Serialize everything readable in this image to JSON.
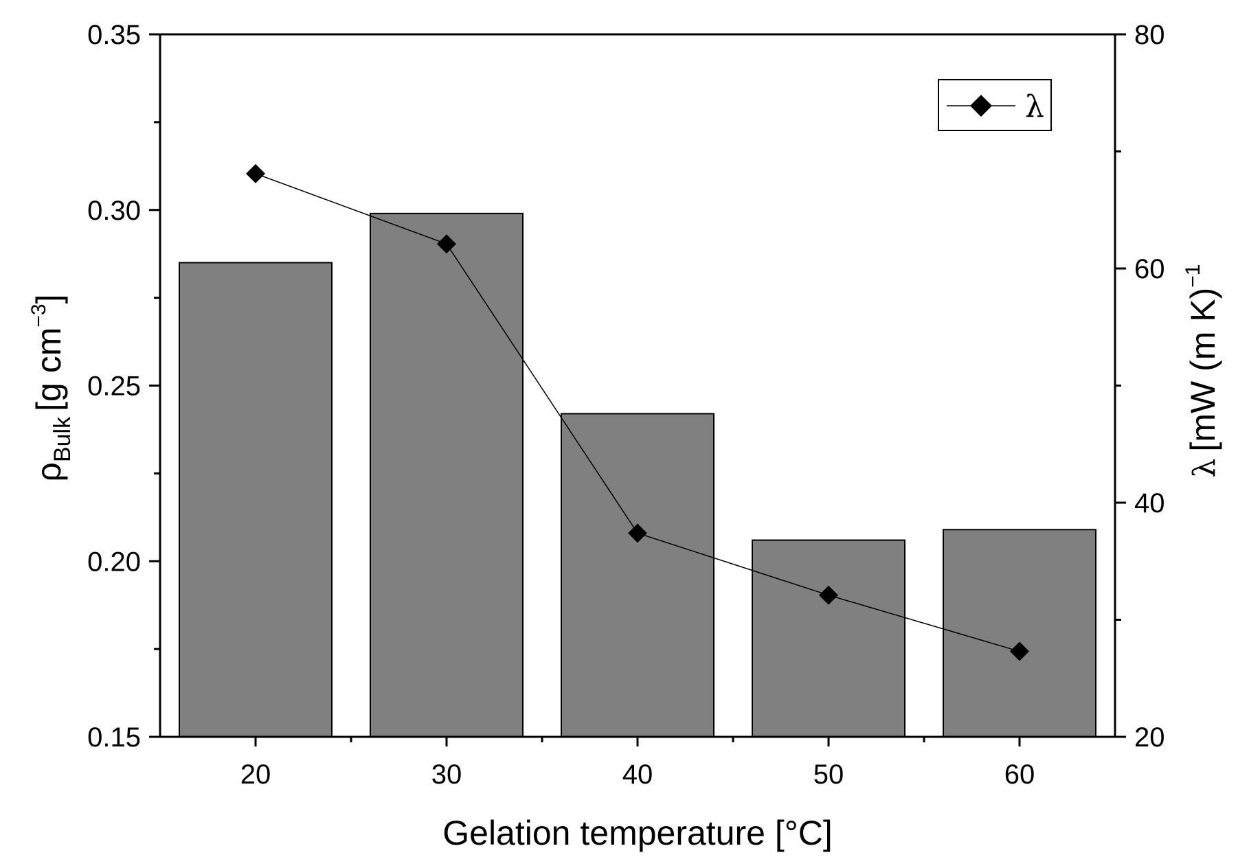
{
  "chart_data": {
    "type": "bar+line",
    "title": "",
    "xlabel": "Gelation temperature [°C]",
    "categories": [
      20,
      30,
      40,
      50,
      60
    ],
    "x_ticks": [
      "20",
      "30",
      "40",
      "50",
      "60"
    ],
    "bars": {
      "name": "ρBulk",
      "axis": "left",
      "values": [
        0.285,
        0.299,
        0.242,
        0.206,
        0.209
      ],
      "color": "#808080"
    },
    "line": {
      "name": "λ",
      "axis": "right",
      "values": [
        68.1,
        62.1,
        37.4,
        32.1,
        27.3
      ],
      "marker": "diamond",
      "color": "#000000"
    },
    "left_axis": {
      "label_symbol": "ρ",
      "label_sub": "Bulk",
      "label_unit": "[g cm",
      "label_sup": "−3",
      "label_end": "]",
      "ylim": [
        0.15,
        0.35
      ],
      "ticks": [
        "0.15",
        "0.20",
        "0.25",
        "0.30",
        "0.35"
      ]
    },
    "right_axis": {
      "label_symbol": "λ",
      "label_unit": "[mW (m K)",
      "label_sup": "−1",
      "ylim": [
        20,
        80
      ],
      "ticks": [
        "20",
        "40",
        "60",
        "80"
      ]
    },
    "legend": {
      "position": "top-right",
      "entries": [
        "λ"
      ]
    }
  }
}
